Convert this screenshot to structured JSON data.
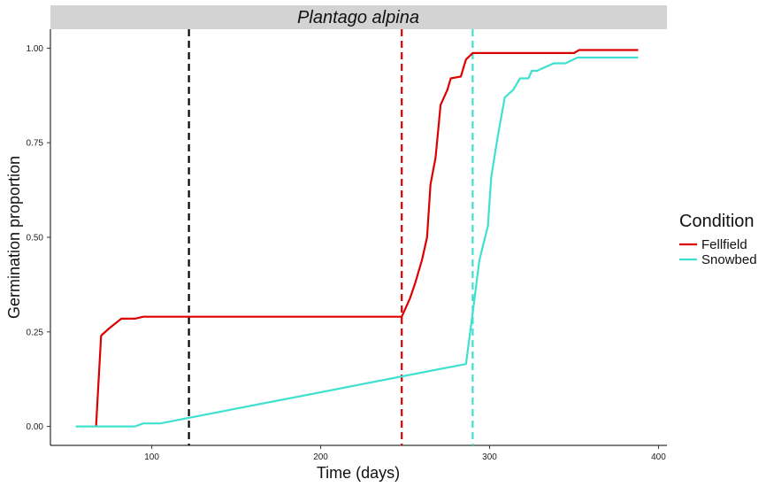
{
  "chart_data": {
    "type": "line",
    "title": "",
    "facet_label": "Plantago alpina",
    "xlabel": "Time (days)",
    "ylabel": "Germination proportion",
    "xlim": [
      40,
      405
    ],
    "ylim": [
      -0.05,
      1.05
    ],
    "x_ticks": [
      100,
      200,
      300,
      400
    ],
    "y_ticks": [
      0.0,
      0.25,
      0.5,
      0.75,
      1.0
    ],
    "y_tick_labels": [
      "0.00",
      "0.25",
      "0.50",
      "0.75",
      "1.00"
    ],
    "grid": false,
    "legend": {
      "title": "Condition",
      "position": "right"
    },
    "series": [
      {
        "name": "Fellfield",
        "color": "#dd0000",
        "points": [
          [
            67,
            0.0
          ],
          [
            70,
            0.24
          ],
          [
            75,
            0.26
          ],
          [
            82,
            0.285
          ],
          [
            90,
            0.285
          ],
          [
            95,
            0.29
          ],
          [
            248,
            0.29
          ],
          [
            253,
            0.34
          ],
          [
            256,
            0.38
          ],
          [
            260,
            0.44
          ],
          [
            263,
            0.5
          ],
          [
            265,
            0.64
          ],
          [
            268,
            0.71
          ],
          [
            271,
            0.85
          ],
          [
            275,
            0.89
          ],
          [
            277,
            0.92
          ],
          [
            283,
            0.925
          ],
          [
            286,
            0.97
          ],
          [
            290,
            0.987
          ],
          [
            350,
            0.987
          ],
          [
            353,
            0.995
          ],
          [
            388,
            0.995
          ]
        ]
      },
      {
        "name": "Snowbed",
        "color": "#40e0d0",
        "points": [
          [
            55,
            0.0
          ],
          [
            90,
            0.0
          ],
          [
            95,
            0.008
          ],
          [
            105,
            0.008
          ],
          [
            286,
            0.165
          ],
          [
            290,
            0.3
          ],
          [
            294,
            0.44
          ],
          [
            299,
            0.53
          ],
          [
            301,
            0.66
          ],
          [
            305,
            0.77
          ],
          [
            309,
            0.87
          ],
          [
            314,
            0.89
          ],
          [
            318,
            0.92
          ],
          [
            323,
            0.92
          ],
          [
            325,
            0.94
          ],
          [
            328,
            0.94
          ],
          [
            333,
            0.95
          ],
          [
            338,
            0.96
          ],
          [
            345,
            0.96
          ],
          [
            352,
            0.975
          ],
          [
            388,
            0.975
          ]
        ]
      }
    ],
    "reference_lines": [
      {
        "x": 122,
        "color": "#000000",
        "style": "dashed"
      },
      {
        "x": 248,
        "color": "#dd0000",
        "style": "dashed"
      },
      {
        "x": 290,
        "color": "#40e0d0",
        "style": "dashed"
      }
    ]
  }
}
